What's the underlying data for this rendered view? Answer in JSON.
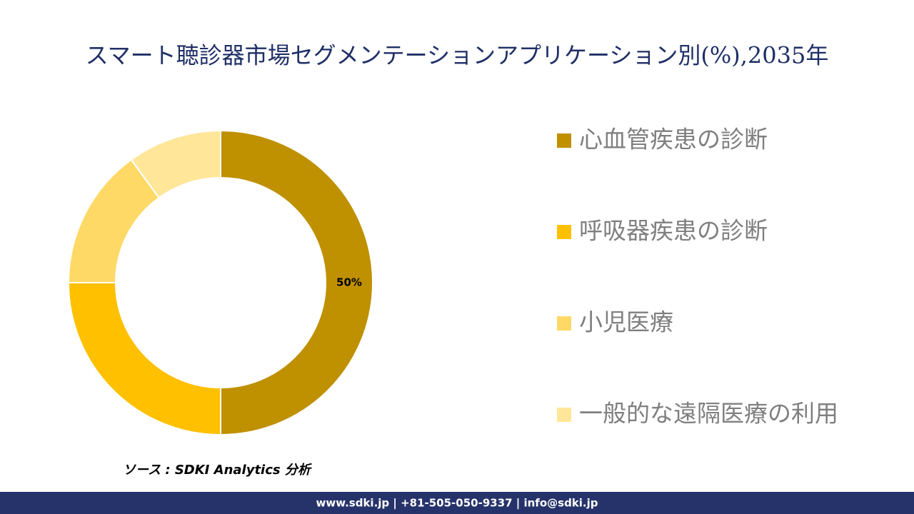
{
  "chart_data": {
    "type": "donut",
    "title": "スマート聴診器市場セグメンテーションアプリケーション別(%),2035年",
    "categories": [
      "心血管疾患の診断",
      "呼吸器疾患の診断",
      "小児医療",
      "一般的な遠隔医療の利用"
    ],
    "values": [
      50,
      25,
      15,
      10
    ],
    "value_labels": [
      "50%",
      null,
      null,
      null
    ],
    "colors": [
      "#bf9000",
      "#ffc000",
      "#ffd966",
      "#ffe699"
    ],
    "legend": "right"
  },
  "source": "ソース : SDKI Analytics 分析",
  "footer": "www.sdki.jp | +81-505-050-9337 | info@sdki.jp"
}
